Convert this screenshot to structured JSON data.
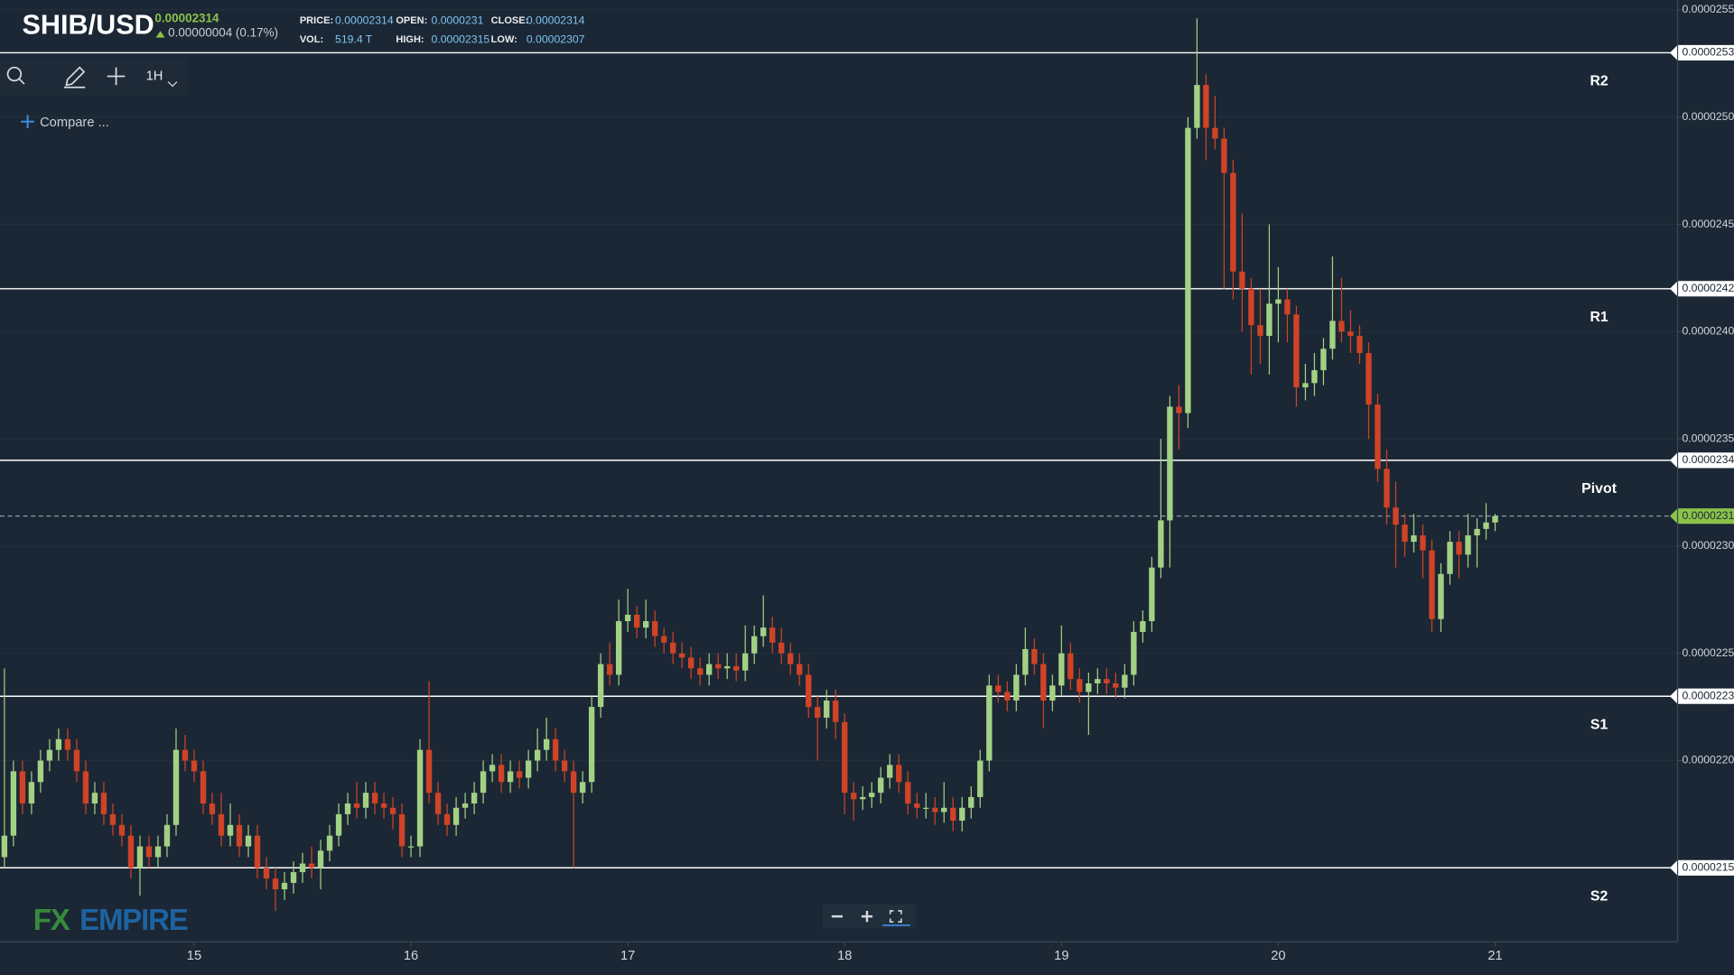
{
  "header": {
    "symbol": "SHIB/USD",
    "price": "0.00002314",
    "change": "0.00000004 (0.17%)",
    "stats": [
      {
        "label": "PRICE:",
        "value": "0.00002314"
      },
      {
        "label": "OPEN:",
        "value": "0.0000231"
      },
      {
        "label": "CLOSE:",
        "value": "0.00002314"
      },
      {
        "label": "VOL:",
        "value": "519.4 T"
      },
      {
        "label": "HIGH:",
        "value": "0.00002315"
      },
      {
        "label": "LOW:",
        "value": "0.00002307"
      }
    ]
  },
  "toolbar": {
    "interval": "1H",
    "compare": "Compare ..."
  },
  "logo": {
    "fx": "FX",
    "empire": "EMPIRE"
  },
  "chart_data": {
    "type": "candlestick",
    "up_color": "#a3d184",
    "down_color": "#cf4327",
    "grid": true,
    "ylim": [
      2.1155e-05,
      2.5546e-05
    ],
    "yticks": [
      {
        "value": 2.55e-05,
        "label": "0.00002550"
      },
      {
        "value": 2.5e-05,
        "label": "0.00002500"
      },
      {
        "value": 2.45e-05,
        "label": "0.00002450"
      },
      {
        "value": 2.4e-05,
        "label": "0.00002400"
      },
      {
        "value": 2.35e-05,
        "label": "0.00002350"
      },
      {
        "value": 2.3e-05,
        "label": "0.00002300"
      },
      {
        "value": 2.25e-05,
        "label": "0.00002250"
      },
      {
        "value": 2.2e-05,
        "label": "0.00002200"
      }
    ],
    "levels": [
      {
        "name": "R2",
        "value": 2.53e-05
      },
      {
        "name": "R1",
        "value": 2.42e-05
      },
      {
        "name": "Pivot",
        "value": 2.34e-05
      },
      {
        "name": "S1",
        "value": 2.23e-05
      },
      {
        "name": "S2",
        "value": 2.15e-05
      }
    ],
    "last_price": 2.314e-05,
    "categories": [
      null,
      null,
      null,
      null,
      null,
      null,
      null,
      null,
      null,
      null,
      null,
      null,
      null,
      null,
      null,
      null,
      null,
      null,
      null,
      null,
      null,
      "15",
      null,
      null,
      null,
      null,
      null,
      null,
      null,
      null,
      null,
      null,
      null,
      null,
      null,
      null,
      null,
      null,
      null,
      null,
      null,
      null,
      null,
      null,
      null,
      "16",
      null,
      null,
      null,
      null,
      null,
      null,
      null,
      null,
      null,
      null,
      null,
      null,
      null,
      null,
      null,
      null,
      null,
      null,
      null,
      null,
      null,
      null,
      null,
      "17",
      null,
      null,
      null,
      null,
      null,
      null,
      null,
      null,
      null,
      null,
      null,
      null,
      null,
      null,
      null,
      null,
      null,
      null,
      null,
      null,
      null,
      null,
      null,
      "18",
      null,
      null,
      null,
      null,
      null,
      null,
      null,
      null,
      null,
      null,
      null,
      null,
      null,
      null,
      null,
      null,
      null,
      null,
      null,
      null,
      null,
      null,
      null,
      "19",
      null,
      null,
      null,
      null,
      null,
      null,
      null,
      null,
      null,
      null,
      null,
      null,
      null,
      null,
      null,
      null,
      null,
      null,
      null,
      null,
      null,
      null,
      null,
      "20",
      null,
      null,
      null,
      null,
      null,
      null,
      null,
      null,
      null,
      null,
      null,
      null,
      null,
      null,
      null,
      null,
      null,
      null,
      null,
      null,
      null,
      null,
      null,
      "21"
    ],
    "open": [
      2.155e-05,
      2.165e-05,
      2.195e-05,
      2.18e-05,
      2.19e-05,
      2.2e-05,
      2.205e-05,
      2.21e-05,
      2.205e-05,
      2.195e-05,
      2.18e-05,
      2.185e-05,
      2.175e-05,
      2.17e-05,
      2.165e-05,
      2.15e-05,
      2.16e-05,
      2.155e-05,
      2.16e-05,
      2.17e-05,
      2.205e-05,
      2.2e-05,
      2.195e-05,
      2.18e-05,
      2.175e-05,
      2.165e-05,
      2.17e-05,
      2.16e-05,
      2.165e-05,
      2.15e-05,
      2.145e-05,
      2.14e-05,
      2.143e-05,
      2.148e-05,
      2.152e-05,
      2.15e-05,
      2.158e-05,
      2.165e-05,
      2.175e-05,
      2.18e-05,
      2.178e-05,
      2.185e-05,
      2.18e-05,
      2.178e-05,
      2.175e-05,
      2.16e-05,
      2.16e-05,
      2.205e-05,
      2.185e-05,
      2.175e-05,
      2.17e-05,
      2.178e-05,
      2.18e-05,
      2.185e-05,
      2.195e-05,
      2.198e-05,
      2.19e-05,
      2.195e-05,
      2.192e-05,
      2.2e-05,
      2.205e-05,
      2.21e-05,
      2.2e-05,
      2.195e-05,
      2.185e-05,
      2.19e-05,
      2.225e-05,
      2.245e-05,
      2.24e-05,
      2.265e-05,
      2.268e-05,
      2.262e-05,
      2.265e-05,
      2.258e-05,
      2.255e-05,
      2.25e-05,
      2.248e-05,
      2.243e-05,
      2.24e-05,
      2.245e-05,
      2.243e-05,
      2.244e-05,
      2.242e-05,
      2.25e-05,
      2.258e-05,
      2.262e-05,
      2.255e-05,
      2.25e-05,
      2.245e-05,
      2.24e-05,
      2.225e-05,
      2.22e-05,
      2.228e-05,
      2.218e-05,
      2.185e-05,
      2.182e-05,
      2.183e-05,
      2.185e-05,
      2.192e-05,
      2.198e-05,
      2.19e-05,
      2.18e-05,
      2.178e-05,
      2.178e-05,
      2.176e-05,
      2.178e-05,
      2.172e-05,
      2.178e-05,
      2.183e-05,
      2.2e-05,
      2.235e-05,
      2.232e-05,
      2.228e-05,
      2.24e-05,
      2.252e-05,
      2.245e-05,
      2.228e-05,
      2.235e-05,
      2.25e-05,
      2.238e-05,
      2.232e-05,
      2.236e-05,
      2.238e-05,
      2.236e-05,
      2.234e-05,
      2.24e-05,
      2.26e-05,
      2.265e-05,
      2.29e-05,
      2.312e-05,
      2.365e-05,
      2.362e-05,
      2.495e-05,
      2.515e-05,
      2.495e-05,
      2.49e-05,
      2.474e-05,
      2.428e-05,
      2.42e-05,
      2.403e-05,
      2.398e-05,
      2.413e-05,
      2.415e-05,
      2.408e-05,
      2.374e-05,
      2.376e-05,
      2.382e-05,
      2.392e-05,
      2.405e-05,
      2.4e-05,
      2.398e-05,
      2.39e-05,
      2.366e-05,
      2.336e-05,
      2.318e-05,
      2.31e-05,
      2.302e-05,
      2.305e-05,
      2.298e-05,
      2.266e-05,
      2.287e-05,
      2.302e-05,
      2.296e-05,
      2.305e-05,
      2.308e-05,
      2.311e-05
    ],
    "high": [
      2.243e-05,
      2.2e-05,
      2.2e-05,
      2.195e-05,
      2.205e-05,
      2.21e-05,
      2.215e-05,
      2.215e-05,
      2.21e-05,
      2.2e-05,
      2.19e-05,
      2.19e-05,
      2.18e-05,
      2.175e-05,
      2.17e-05,
      2.165e-05,
      2.165e-05,
      2.165e-05,
      2.175e-05,
      2.215e-05,
      2.212e-05,
      2.205e-05,
      2.2e-05,
      2.185e-05,
      2.185e-05,
      2.18e-05,
      2.175e-05,
      2.17e-05,
      2.17e-05,
      2.155e-05,
      2.15e-05,
      2.148e-05,
      2.153e-05,
      2.157e-05,
      2.16e-05,
      2.163e-05,
      2.17e-05,
      2.18e-05,
      2.185e-05,
      2.19e-05,
      2.19e-05,
      2.19e-05,
      2.185e-05,
      2.183e-05,
      2.18e-05,
      2.165e-05,
      2.21e-05,
      2.237e-05,
      2.19e-05,
      2.18e-05,
      2.183e-05,
      2.185e-05,
      2.19e-05,
      2.2e-05,
      2.203e-05,
      2.203e-05,
      2.2e-05,
      2.2e-05,
      2.205e-05,
      2.215e-05,
      2.22e-05,
      2.215e-05,
      2.205e-05,
      2.2e-05,
      2.195e-05,
      2.23e-05,
      2.25e-05,
      2.255e-05,
      2.275e-05,
      2.28e-05,
      2.272e-05,
      2.275e-05,
      2.27e-05,
      2.262e-05,
      2.26e-05,
      2.255e-05,
      2.253e-05,
      2.248e-05,
      2.25e-05,
      2.25e-05,
      2.25e-05,
      2.25e-05,
      2.263e-05,
      2.263e-05,
      2.277e-05,
      2.267e-05,
      2.262e-05,
      2.255e-05,
      2.25e-05,
      2.245e-05,
      2.23e-05,
      2.233e-05,
      2.233e-05,
      2.222e-05,
      2.19e-05,
      2.188e-05,
      2.19e-05,
      2.197e-05,
      2.203e-05,
      2.203e-05,
      2.195e-05,
      2.185e-05,
      2.185e-05,
      2.183e-05,
      2.19e-05,
      2.183e-05,
      2.183e-05,
      2.188e-05,
      2.205e-05,
      2.24e-05,
      2.24e-05,
      2.237e-05,
      2.245e-05,
      2.262e-05,
      2.257e-05,
      2.25e-05,
      2.24e-05,
      2.263e-05,
      2.255e-05,
      2.243e-05,
      2.241e-05,
      2.243e-05,
      2.243e-05,
      2.241e-05,
      2.245e-05,
      2.265e-05,
      2.27e-05,
      2.295e-05,
      2.35e-05,
      2.37e-05,
      2.375e-05,
      2.5e-05,
      2.546e-05,
      2.52e-05,
      2.51e-05,
      2.495e-05,
      2.48e-05,
      2.455e-05,
      2.425e-05,
      2.42e-05,
      2.45e-05,
      2.43e-05,
      2.42e-05,
      2.412e-05,
      2.385e-05,
      2.39e-05,
      2.397e-05,
      2.435e-05,
      2.425e-05,
      2.41e-05,
      2.403e-05,
      2.395e-05,
      2.371e-05,
      2.345e-05,
      2.33e-05,
      2.315e-05,
      2.315e-05,
      2.31e-05,
      2.303e-05,
      2.292e-05,
      2.307e-05,
      2.307e-05,
      2.315e-05,
      2.313e-05,
      2.32e-05,
      2.315e-05
    ],
    "low": [
      2.15e-05,
      2.16e-05,
      2.175e-05,
      2.175e-05,
      2.185e-05,
      2.195e-05,
      2.2e-05,
      2.2e-05,
      2.19e-05,
      2.175e-05,
      2.175e-05,
      2.17e-05,
      2.165e-05,
      2.16e-05,
      2.145e-05,
      2.137e-05,
      2.15e-05,
      2.15e-05,
      2.155e-05,
      2.165e-05,
      2.195e-05,
      2.19e-05,
      2.175e-05,
      2.17e-05,
      2.16e-05,
      2.16e-05,
      2.155e-05,
      2.155e-05,
      2.145e-05,
      2.14e-05,
      2.13e-05,
      2.135e-05,
      2.138e-05,
      2.143e-05,
      2.145e-05,
      2.14e-05,
      2.153e-05,
      2.16e-05,
      2.17e-05,
      2.173e-05,
      2.173e-05,
      2.175e-05,
      2.173e-05,
      2.168e-05,
      2.155e-05,
      2.155e-05,
      2.155e-05,
      2.18e-05,
      2.17e-05,
      2.165e-05,
      2.165e-05,
      2.173e-05,
      2.175e-05,
      2.18e-05,
      2.19e-05,
      2.185e-05,
      2.185e-05,
      2.187e-05,
      2.187e-05,
      2.195e-05,
      2.2e-05,
      2.195e-05,
      2.19e-05,
      2.15e-05,
      2.18e-05,
      2.185e-05,
      2.22e-05,
      2.235e-05,
      2.235e-05,
      2.26e-05,
      2.257e-05,
      2.257e-05,
      2.253e-05,
      2.25e-05,
      2.245e-05,
      2.243e-05,
      2.238e-05,
      2.235e-05,
      2.235e-05,
      2.238e-05,
      2.238e-05,
      2.237e-05,
      2.237e-05,
      2.245e-05,
      2.253e-05,
      2.25e-05,
      2.245e-05,
      2.24e-05,
      2.235e-05,
      2.22e-05,
      2.2e-05,
      2.215e-05,
      2.21e-05,
      2.175e-05,
      2.172e-05,
      2.177e-05,
      2.178e-05,
      2.18e-05,
      2.187e-05,
      2.185e-05,
      2.175e-05,
      2.173e-05,
      2.173e-05,
      2.17e-05,
      2.171e-05,
      2.167e-05,
      2.167e-05,
      2.173e-05,
      2.178e-05,
      2.195e-05,
      2.227e-05,
      2.223e-05,
      2.223e-05,
      2.235e-05,
      2.24e-05,
      2.215e-05,
      2.223e-05,
      2.23e-05,
      2.233e-05,
      2.227e-05,
      2.212e-05,
      2.231e-05,
      2.231e-05,
      2.229e-05,
      2.229e-05,
      2.235e-05,
      2.255e-05,
      2.26e-05,
      2.285e-05,
      2.29e-05,
      2.345e-05,
      2.355e-05,
      2.49e-05,
      2.48e-05,
      2.485e-05,
      2.42e-05,
      2.415e-05,
      2.4e-05,
      2.38e-05,
      2.385e-05,
      2.38e-05,
      2.395e-05,
      2.395e-05,
      2.365e-05,
      2.368e-05,
      2.37e-05,
      2.375e-05,
      2.387e-05,
      2.395e-05,
      2.39e-05,
      2.385e-05,
      2.35e-05,
      2.33e-05,
      2.31e-05,
      2.29e-05,
      2.295e-05,
      2.297e-05,
      2.285e-05,
      2.26e-05,
      2.26e-05,
      2.282e-05,
      2.285e-05,
      2.29e-05,
      2.29e-05,
      2.303e-05,
      2.307e-05
    ],
    "close": [
      2.165e-05,
      2.195e-05,
      2.18e-05,
      2.19e-05,
      2.2e-05,
      2.205e-05,
      2.21e-05,
      2.205e-05,
      2.195e-05,
      2.18e-05,
      2.185e-05,
      2.175e-05,
      2.17e-05,
      2.165e-05,
      2.15e-05,
      2.16e-05,
      2.155e-05,
      2.16e-05,
      2.17e-05,
      2.205e-05,
      2.2e-05,
      2.195e-05,
      2.18e-05,
      2.175e-05,
      2.165e-05,
      2.17e-05,
      2.16e-05,
      2.165e-05,
      2.15e-05,
      2.145e-05,
      2.14e-05,
      2.143e-05,
      2.148e-05,
      2.152e-05,
      2.15e-05,
      2.158e-05,
      2.165e-05,
      2.175e-05,
      2.18e-05,
      2.178e-05,
      2.185e-05,
      2.18e-05,
      2.178e-05,
      2.175e-05,
      2.16e-05,
      2.16e-05,
      2.205e-05,
      2.185e-05,
      2.175e-05,
      2.17e-05,
      2.178e-05,
      2.18e-05,
      2.185e-05,
      2.195e-05,
      2.198e-05,
      2.19e-05,
      2.195e-05,
      2.192e-05,
      2.2e-05,
      2.205e-05,
      2.21e-05,
      2.2e-05,
      2.195e-05,
      2.185e-05,
      2.19e-05,
      2.225e-05,
      2.245e-05,
      2.24e-05,
      2.265e-05,
      2.268e-05,
      2.262e-05,
      2.265e-05,
      2.258e-05,
      2.255e-05,
      2.25e-05,
      2.248e-05,
      2.243e-05,
      2.24e-05,
      2.245e-05,
      2.243e-05,
      2.244e-05,
      2.242e-05,
      2.25e-05,
      2.258e-05,
      2.262e-05,
      2.255e-05,
      2.25e-05,
      2.245e-05,
      2.24e-05,
      2.225e-05,
      2.22e-05,
      2.228e-05,
      2.218e-05,
      2.185e-05,
      2.182e-05,
      2.183e-05,
      2.185e-05,
      2.192e-05,
      2.198e-05,
      2.19e-05,
      2.18e-05,
      2.178e-05,
      2.178e-05,
      2.176e-05,
      2.178e-05,
      2.172e-05,
      2.178e-05,
      2.183e-05,
      2.2e-05,
      2.235e-05,
      2.232e-05,
      2.228e-05,
      2.24e-05,
      2.252e-05,
      2.245e-05,
      2.228e-05,
      2.235e-05,
      2.25e-05,
      2.238e-05,
      2.232e-05,
      2.236e-05,
      2.238e-05,
      2.236e-05,
      2.234e-05,
      2.24e-05,
      2.26e-05,
      2.265e-05,
      2.29e-05,
      2.312e-05,
      2.365e-05,
      2.362e-05,
      2.495e-05,
      2.515e-05,
      2.495e-05,
      2.49e-05,
      2.474e-05,
      2.428e-05,
      2.42e-05,
      2.403e-05,
      2.398e-05,
      2.413e-05,
      2.415e-05,
      2.408e-05,
      2.374e-05,
      2.376e-05,
      2.382e-05,
      2.392e-05,
      2.405e-05,
      2.4e-05,
      2.398e-05,
      2.39e-05,
      2.366e-05,
      2.336e-05,
      2.318e-05,
      2.31e-05,
      2.302e-05,
      2.305e-05,
      2.298e-05,
      2.266e-05,
      2.287e-05,
      2.302e-05,
      2.296e-05,
      2.305e-05,
      2.308e-05,
      2.311e-05,
      2.314e-05
    ]
  }
}
